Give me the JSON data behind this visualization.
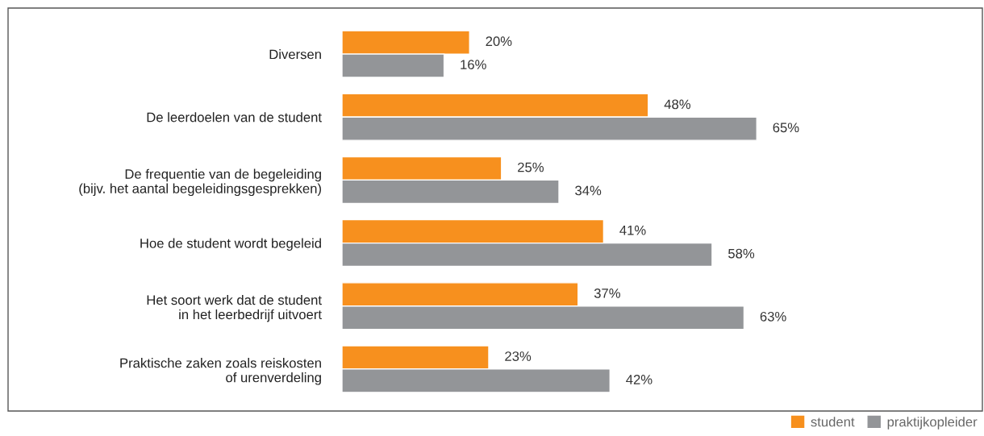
{
  "chart_data": {
    "type": "bar",
    "orientation": "horizontal",
    "categories": [
      "Diversen",
      "De leerdoelen van de student",
      "De frequentie van de begeleiding\n(bijv. het aantal begeleidingsgesprekken)",
      "Hoe de student wordt begeleid",
      "Het soort werk dat de student\nin het leerbedrijf uitvoert",
      "Praktische zaken zoals reiskosten\nof urenverdeling"
    ],
    "series": [
      {
        "name": "student",
        "color": "#f7901e",
        "values": [
          20,
          48,
          25,
          41,
          37,
          23
        ],
        "value_labels": [
          "20%",
          "48%",
          "25%",
          "41%",
          "37%",
          "23%"
        ]
      },
      {
        "name": "praktijkopleider",
        "color": "#939598",
        "values": [
          16,
          65,
          34,
          58,
          63,
          42
        ],
        "value_labels": [
          "16%",
          "65%",
          "34%",
          "58%",
          "63%",
          "42%"
        ]
      }
    ],
    "legend": "bottom right",
    "grid": false
  }
}
